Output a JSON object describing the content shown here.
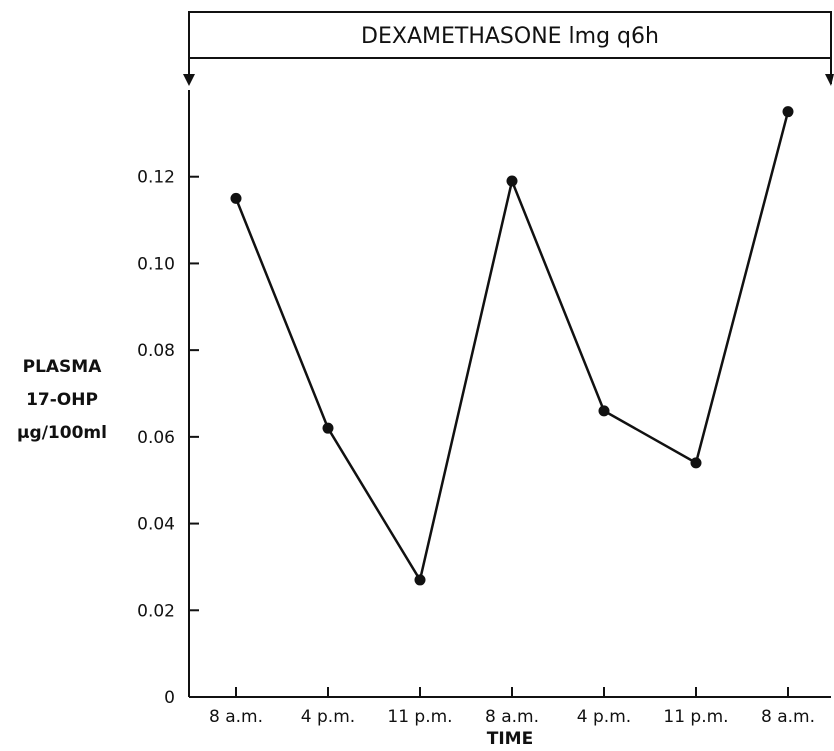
{
  "chart_data": {
    "type": "line",
    "title": "",
    "banner": "DEXAMETHASONE lmg q6h",
    "ylabel_lines": [
      "PLASMA",
      "17-OHP",
      "μg/100ml"
    ],
    "xlabel": "TIME",
    "categories": [
      "8 a.m.",
      "4 p.m.",
      "11 p.m.",
      "8 a.m.",
      "4 p.m.",
      "11 p.m.",
      "8 a.m."
    ],
    "values": [
      0.115,
      0.062,
      0.027,
      0.119,
      0.066,
      0.054,
      0.135
    ],
    "ylim": [
      0,
      0.14
    ],
    "yticks": [
      0,
      0.02,
      0.04,
      0.06,
      0.08,
      0.1,
      0.12
    ],
    "ytick_labels": [
      "0",
      "0.02",
      "0.04",
      "0.06",
      "0.08",
      "0.10",
      "0.12"
    ],
    "grid": false,
    "colors": {
      "line": "#111111",
      "marker": "#111111"
    }
  }
}
